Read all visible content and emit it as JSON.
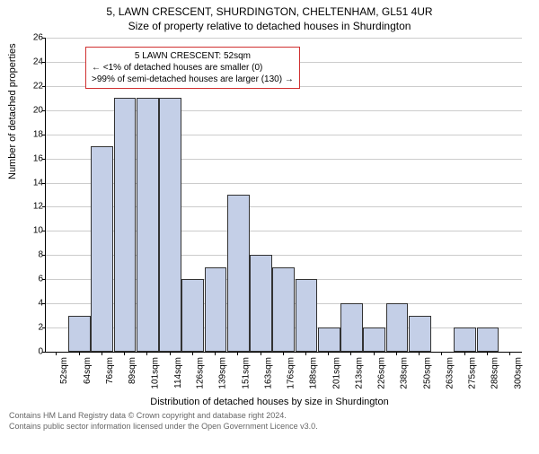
{
  "title_main": "5, LAWN CRESCENT, SHURDINGTON, CHELTENHAM, GL51 4UR",
  "title_sub": "Size of property relative to detached houses in Shurdington",
  "chart": {
    "type": "bar",
    "ylabel": "Number of detached properties",
    "xlabel": "Distribution of detached houses by size in Shurdington",
    "ylim_max": 26,
    "ytick_step": 2,
    "bar_color": "#c4cfe7",
    "bar_border": "#333333",
    "grid_color": "#cccccc",
    "background_color": "#ffffff",
    "label_fontsize": 11,
    "tick_fontsize": 10,
    "categories": [
      "52sqm",
      "64sqm",
      "76sqm",
      "89sqm",
      "101sqm",
      "114sqm",
      "126sqm",
      "139sqm",
      "151sqm",
      "163sqm",
      "176sqm",
      "188sqm",
      "201sqm",
      "213sqm",
      "226sqm",
      "238sqm",
      "250sqm",
      "263sqm",
      "275sqm",
      "288sqm",
      "300sqm"
    ],
    "values": [
      0,
      3,
      17,
      21,
      21,
      21,
      6,
      7,
      13,
      8,
      7,
      6,
      2,
      4,
      2,
      4,
      3,
      0,
      2,
      2,
      0
    ]
  },
  "annotation": {
    "line1": "5 LAWN CRESCENT: 52sqm",
    "line2": "← <1% of detached houses are smaller (0)",
    "line3": ">99% of semi-detached houses are larger (130) →",
    "border_color": "#d03030"
  },
  "footer_line1": "Contains HM Land Registry data © Crown copyright and database right 2024.",
  "footer_line2": "Contains public sector information licensed under the Open Government Licence v3.0."
}
